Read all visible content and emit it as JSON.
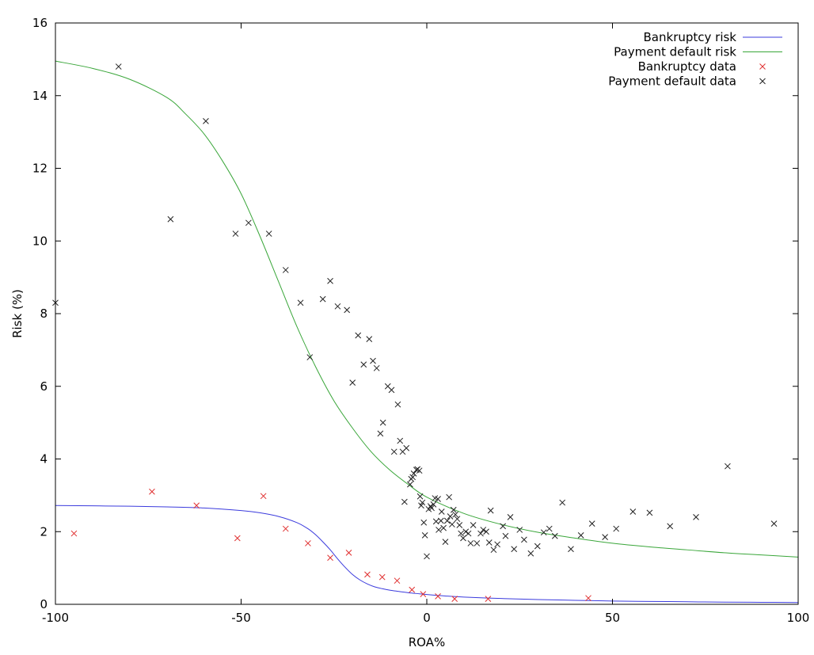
{
  "chart_data": {
    "type": "scatter",
    "xlabel": "ROA%",
    "ylabel": "Risk (%)",
    "xlim": [
      -100,
      100
    ],
    "ylim": [
      0,
      16
    ],
    "x_ticks": [
      -100,
      -50,
      0,
      50,
      100
    ],
    "y_ticks": [
      0,
      2,
      4,
      6,
      8,
      10,
      12,
      14,
      16
    ],
    "x_tick_labels": [
      "-100",
      "-50",
      "0",
      "50",
      "100"
    ],
    "y_tick_labels": [
      "0",
      "2",
      "4",
      "6",
      "8",
      "10",
      "12",
      "14",
      "16"
    ],
    "grid": false,
    "legend_position": "top-right",
    "curves": [
      {
        "name": "Bankruptcy risk",
        "color": "#3b3bdd",
        "x": [
          -100,
          -90,
          -80,
          -70,
          -60,
          -50,
          -45,
          -40,
          -35,
          -32,
          -30,
          -28,
          -26,
          -24,
          -22,
          -20,
          -18,
          -16,
          -14,
          -12,
          -10,
          -8,
          -5,
          -2,
          0,
          5,
          10,
          20,
          30,
          40,
          50,
          60,
          70,
          80,
          90,
          100
        ],
        "y": [
          2.72,
          2.71,
          2.7,
          2.68,
          2.65,
          2.58,
          2.52,
          2.42,
          2.25,
          2.08,
          1.92,
          1.72,
          1.5,
          1.25,
          1.02,
          0.82,
          0.67,
          0.56,
          0.48,
          0.43,
          0.39,
          0.36,
          0.32,
          0.29,
          0.27,
          0.23,
          0.2,
          0.16,
          0.13,
          0.11,
          0.09,
          0.08,
          0.07,
          0.06,
          0.055,
          0.05
        ]
      },
      {
        "name": "Payment default risk",
        "color": "#3aa63a",
        "x": [
          -100,
          -90,
          -80,
          -70,
          -65,
          -60,
          -55,
          -50,
          -45,
          -40,
          -35,
          -30,
          -25,
          -20,
          -15,
          -10,
          -5,
          0,
          10,
          20,
          30,
          40,
          50,
          60,
          70,
          80,
          90,
          100
        ],
        "y": [
          14.95,
          14.75,
          14.45,
          13.95,
          13.5,
          12.95,
          12.2,
          11.3,
          10.15,
          8.9,
          7.65,
          6.55,
          5.6,
          4.85,
          4.2,
          3.7,
          3.3,
          2.95,
          2.5,
          2.2,
          1.98,
          1.82,
          1.68,
          1.58,
          1.5,
          1.42,
          1.36,
          1.3
        ]
      }
    ],
    "series": [
      {
        "name": "Bankruptcy data",
        "color": "#e03030",
        "points": [
          [
            -95,
            1.95
          ],
          [
            -74,
            3.1
          ],
          [
            -62,
            2.72
          ],
          [
            -51,
            1.82
          ],
          [
            -44,
            2.98
          ],
          [
            -38,
            2.08
          ],
          [
            -32,
            1.68
          ],
          [
            -26,
            1.28
          ],
          [
            -21,
            1.42
          ],
          [
            -16,
            0.82
          ],
          [
            -12,
            0.75
          ],
          [
            -8,
            0.65
          ],
          [
            -4,
            0.4
          ],
          [
            -1,
            0.28
          ],
          [
            3,
            0.22
          ],
          [
            7.5,
            0.15
          ],
          [
            16.5,
            0.15
          ],
          [
            43.5,
            0.17
          ]
        ]
      },
      {
        "name": "Payment default data",
        "color": "#222222",
        "points": [
          [
            -100,
            8.3
          ],
          [
            -83,
            14.8
          ],
          [
            -69,
            10.6
          ],
          [
            -59.5,
            13.3
          ],
          [
            -51.5,
            10.2
          ],
          [
            -48,
            10.5
          ],
          [
            -42.5,
            10.2
          ],
          [
            -38,
            9.2
          ],
          [
            -34,
            8.3
          ],
          [
            -31.5,
            6.8
          ],
          [
            -28,
            8.4
          ],
          [
            -26,
            8.9
          ],
          [
            -24,
            8.2
          ],
          [
            -21.5,
            8.1
          ],
          [
            -20,
            6.1
          ],
          [
            -18.5,
            7.4
          ],
          [
            -17,
            6.6
          ],
          [
            -15.5,
            7.3
          ],
          [
            -14.5,
            6.7
          ],
          [
            -13.5,
            6.5
          ],
          [
            -12.5,
            4.7
          ],
          [
            -11.8,
            5.0
          ],
          [
            -10.5,
            6.0
          ],
          [
            -9.5,
            5.9
          ],
          [
            -8.8,
            4.2
          ],
          [
            -7.8,
            5.5
          ],
          [
            -7.2,
            4.5
          ],
          [
            -6.5,
            4.2
          ],
          [
            -5.5,
            4.3
          ],
          [
            -6,
            2.82
          ],
          [
            -4.5,
            3.3
          ],
          [
            -4.2,
            3.45
          ],
          [
            -3.8,
            3.5
          ],
          [
            -3.5,
            3.6
          ],
          [
            -2.8,
            3.7
          ],
          [
            -2.5,
            3.72
          ],
          [
            -2,
            3.68
          ],
          [
            -1.8,
            2.97
          ],
          [
            -1.5,
            2.72
          ],
          [
            -1.2,
            2.8
          ],
          [
            -0.8,
            2.25
          ],
          [
            -0.5,
            1.9
          ],
          [
            0,
            1.32
          ],
          [
            0.5,
            2.62
          ],
          [
            1,
            2.7
          ],
          [
            1.3,
            2.65
          ],
          [
            1.8,
            2.75
          ],
          [
            2.2,
            2.92
          ],
          [
            2.5,
            2.28
          ],
          [
            3.0,
            2.9
          ],
          [
            3.2,
            2.05
          ],
          [
            3.8,
            2.3
          ],
          [
            4.0,
            2.55
          ],
          [
            4.5,
            2.1
          ],
          [
            5.0,
            1.72
          ],
          [
            5.5,
            2.3
          ],
          [
            6.0,
            2.95
          ],
          [
            6.3,
            2.42
          ],
          [
            6.8,
            2.2
          ],
          [
            7.2,
            2.6
          ],
          [
            7.7,
            2.47
          ],
          [
            8.2,
            2.35
          ],
          [
            8.8,
            2.18
          ],
          [
            9.2,
            1.95
          ],
          [
            9.8,
            1.82
          ],
          [
            10.5,
            2.0
          ],
          [
            11.2,
            1.95
          ],
          [
            11.8,
            1.68
          ],
          [
            12.5,
            2.18
          ],
          [
            13.5,
            1.68
          ],
          [
            14.5,
            1.95
          ],
          [
            15.2,
            2.05
          ],
          [
            16.0,
            2.0
          ],
          [
            16.8,
            1.7
          ],
          [
            17.2,
            2.58
          ],
          [
            18.0,
            1.5
          ],
          [
            19.0,
            1.65
          ],
          [
            20.5,
            2.15
          ],
          [
            21.2,
            1.88
          ],
          [
            22.5,
            2.4
          ],
          [
            23.5,
            1.52
          ],
          [
            25.0,
            2.05
          ],
          [
            26.2,
            1.78
          ],
          [
            28.0,
            1.4
          ],
          [
            29.8,
            1.6
          ],
          [
            31.5,
            1.98
          ],
          [
            33.0,
            2.08
          ],
          [
            34.5,
            1.88
          ],
          [
            36.5,
            2.8
          ],
          [
            38.8,
            1.52
          ],
          [
            41.5,
            1.9
          ],
          [
            44.5,
            2.22
          ],
          [
            48.0,
            1.85
          ],
          [
            51.0,
            2.08
          ],
          [
            55.5,
            2.55
          ],
          [
            60.0,
            2.52
          ],
          [
            65.5,
            2.15
          ],
          [
            72.5,
            2.4
          ],
          [
            81.0,
            3.8
          ],
          [
            93.5,
            2.22
          ]
        ]
      }
    ]
  }
}
